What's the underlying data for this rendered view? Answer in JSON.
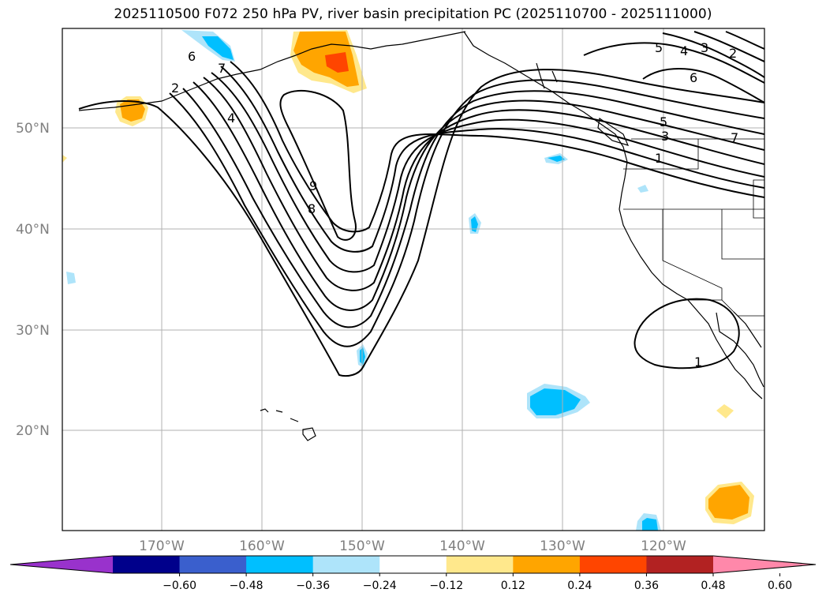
{
  "title": "2025110500 F072 250 hPa PV, river basin precipitation PC (2025110700 - 2025111000)",
  "lat_labels": [
    "50°N",
    "40°N",
    "30°N",
    "20°N"
  ],
  "lon_labels": [
    "170°W",
    "160°W",
    "150°W",
    "140°W",
    "130°W",
    "120°W"
  ],
  "contour_labels": [
    "6",
    "7",
    "2",
    "4",
    "9",
    "8",
    "5",
    "4",
    "3",
    "2",
    "6",
    "5",
    "3",
    "1",
    "7",
    "1"
  ],
  "colorbar": {
    "ticks": [
      "−0.60",
      "−0.48",
      "−0.36",
      "−0.24",
      "−0.12",
      "0.12",
      "0.24",
      "0.36",
      "0.48",
      "0.60"
    ],
    "colors": [
      "#9932CC",
      "#00008B",
      "#3A5FCD",
      "#00BFFF",
      "#AEE4FA",
      "#FFFFFF",
      "#FFE88C",
      "#FFA500",
      "#FF4500",
      "#B22222",
      "#FF88AA"
    ]
  },
  "colors": {
    "pv_contour": "#000000",
    "grid": "#b0b0b0",
    "coast": "#000000"
  }
}
